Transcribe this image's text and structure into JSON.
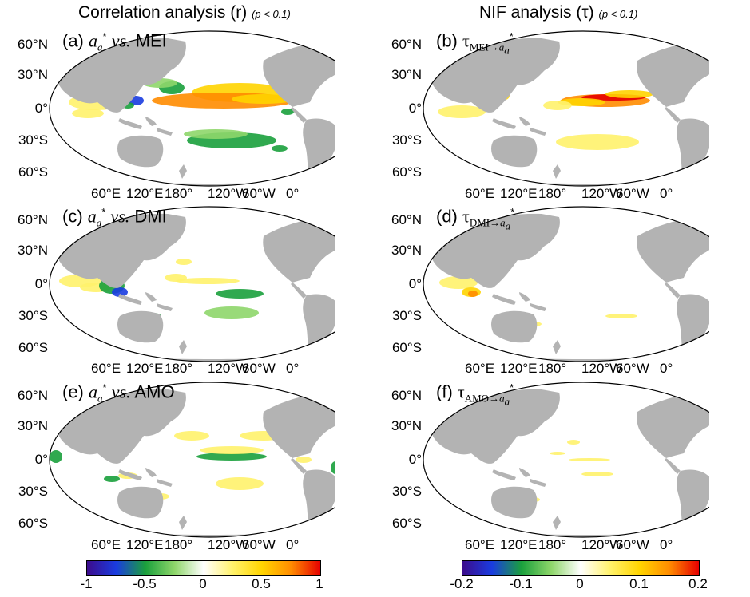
{
  "titles": {
    "left": "Correlation analysis (r)",
    "left_p": "(p < 0.1)",
    "right": "NIF analysis (τ)",
    "right_p": "(p < 0.1)"
  },
  "panels": [
    {
      "id": "a",
      "tag": "(a)",
      "var": "a",
      "sub": "a",
      "sup": "*",
      "mid": "vs.",
      "index": "MEI"
    },
    {
      "id": "b",
      "tag": "(b)",
      "tau": "τ",
      "tausub": "MEI→",
      "var": "a",
      "sub": "a",
      "sup": "*"
    },
    {
      "id": "c",
      "tag": "(c)",
      "var": "a",
      "sub": "a",
      "sup": "*",
      "mid": "vs.",
      "index": "DMI"
    },
    {
      "id": "d",
      "tag": "(d)",
      "tau": "τ",
      "tausub": "DMI→",
      "var": "a",
      "sub": "a",
      "sup": "*"
    },
    {
      "id": "e",
      "tag": "(e)",
      "var": "a",
      "sub": "a",
      "sup": "*",
      "mid": "vs.",
      "index": "AMO"
    },
    {
      "id": "f",
      "tag": "(f)",
      "tau": "τ",
      "tausub": "AMO→",
      "var": "a",
      "sub": "a",
      "sup": "*"
    }
  ],
  "lat_labels": [
    "60°N",
    "30°N",
    "0°",
    "30°S",
    "60°S"
  ],
  "lon_labels": [
    "60°E",
    "120°E",
    "180°",
    "120°W",
    "60°W",
    "0°"
  ],
  "colorbars": {
    "left": {
      "ticks": [
        "-1",
        "-0.5",
        "0",
        "0.5",
        "1"
      ]
    },
    "right": {
      "ticks": [
        "-0.2",
        "-0.1",
        "0",
        "0.1",
        "0.2"
      ]
    }
  },
  "colors": {
    "land": "#b3b3b3",
    "ocean": "#ffffff",
    "scale": [
      "#3c0c8c",
      "#1a3ce0",
      "#1aa03c",
      "#8ed66a",
      "#ffffff",
      "#fff26b",
      "#ffd400",
      "#ff8c00",
      "#e60000"
    ]
  }
}
